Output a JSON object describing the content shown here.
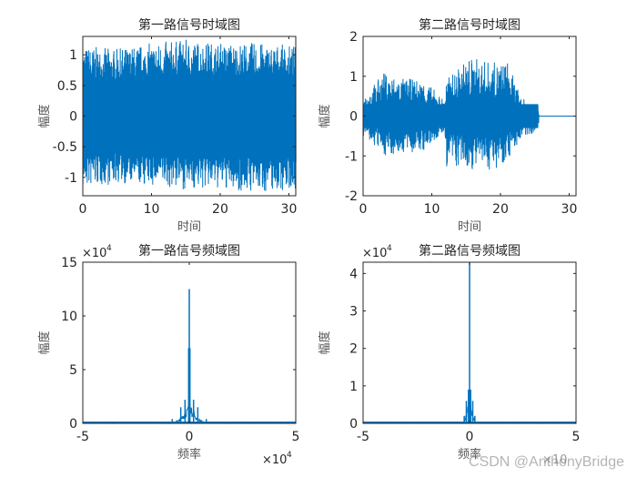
{
  "chart_data": [
    {
      "type": "line",
      "title": "第一路信号时域图",
      "xlabel": "时间",
      "ylabel": "幅度",
      "xlim": [
        0,
        31
      ],
      "ylim": [
        -1.3,
        1.3
      ],
      "xticks": [
        "0",
        "10",
        "20",
        "30"
      ],
      "yticks": [
        "-1",
        "-0.5",
        "0",
        "0.5",
        "1"
      ],
      "description": "Dense noisy waveform with amplitude envelope ~±1.2 across 0-31 s",
      "envelope": {
        "x": [
          0,
          5,
          10,
          15,
          20,
          25,
          31
        ],
        "max": [
          1.15,
          1.1,
          1.2,
          1.25,
          1.2,
          1.2,
          1.15
        ],
        "min": [
          -1.2,
          -1.1,
          -1.15,
          -1.2,
          -1.2,
          -1.25,
          -1.2
        ]
      }
    },
    {
      "type": "line",
      "title": "第二路信号时域图",
      "xlabel": "时间",
      "ylabel": "幅度",
      "xlim": [
        0,
        31
      ],
      "ylim": [
        -2,
        2
      ],
      "xticks": [
        "0",
        "10",
        "20",
        "30"
      ],
      "yticks": [
        "-2",
        "-1",
        "0",
        "1",
        "2"
      ],
      "description": "Music-like waveform until ~25.5 s, then flat zero",
      "envelope": {
        "x": [
          0,
          3,
          6,
          9,
          11.9,
          12,
          15.5,
          19,
          21,
          23,
          25.5,
          25.6,
          31
        ],
        "max": [
          0.5,
          1.1,
          0.95,
          0.9,
          0.4,
          0.9,
          1.5,
          1.35,
          1.4,
          0.45,
          0.3,
          0,
          0
        ],
        "min": [
          -0.5,
          -1.0,
          -0.95,
          -0.9,
          -0.4,
          -1.3,
          -1.35,
          -1.35,
          -1.1,
          -0.6,
          -0.35,
          0,
          0
        ]
      }
    },
    {
      "type": "line",
      "title": "第一路信号频域图",
      "xlabel": "频率",
      "ylabel": "幅度",
      "xlim": [
        -50000,
        50000
      ],
      "ylim": [
        0,
        150000
      ],
      "xticks": [
        "-5",
        "0",
        "5"
      ],
      "yticks": [
        "0",
        "5",
        "10",
        "15"
      ],
      "x_exponent": "×10^4",
      "y_exponent": "×10^4",
      "peaks": {
        "x": [
          0,
          300,
          -300,
          2000,
          -2000,
          4000,
          -4000,
          8000,
          -8000
        ],
        "y": [
          125000,
          70000,
          70000,
          22000,
          22000,
          15000,
          15000,
          4000,
          4000
        ]
      }
    },
    {
      "type": "line",
      "title": "第二路信号频域图",
      "xlabel": "频率",
      "ylabel": "幅度",
      "xlim": [
        -50000,
        50000
      ],
      "ylim": [
        0,
        43000
      ],
      "xticks": [
        "-5",
        "0",
        "5"
      ],
      "yticks": [
        "0",
        "1",
        "2",
        "3",
        "4"
      ],
      "x_exponent": "×10^4",
      "y_exponent": "×10^4",
      "peaks": {
        "x": [
          0,
          500,
          -500,
          1500,
          -1500,
          2500,
          -2500
        ],
        "y": [
          43000,
          9000,
          9000,
          6000,
          6000,
          2000,
          2000
        ]
      }
    }
  ],
  "watermark": "CSDN @AnthonyBridge",
  "colors": {
    "line": "#0072BD",
    "axis": "#262626"
  }
}
